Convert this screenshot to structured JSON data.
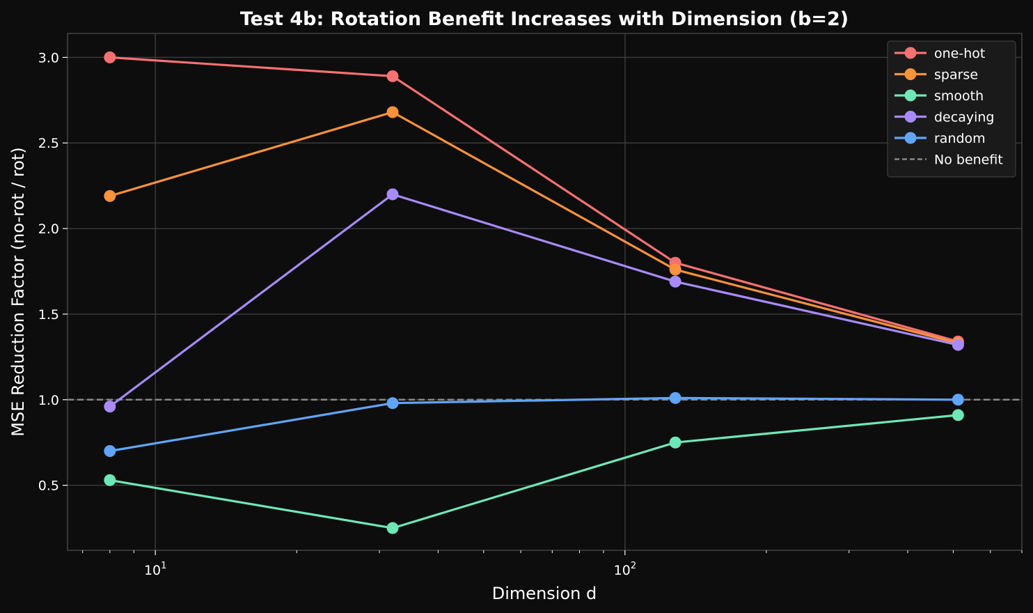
{
  "chart_data": {
    "type": "line",
    "title": "Test 4b: Rotation Benefit Increases with Dimension (b=2)",
    "xlabel": "Dimension d",
    "ylabel": "MSE Reduction Factor (no-rot / rot)",
    "xscale": "log",
    "xlim": [
      6.5,
      700
    ],
    "ylim": [
      0.12,
      3.14
    ],
    "x": [
      8,
      32,
      128,
      512
    ],
    "xticks": [
      {
        "value": 10,
        "base": "10",
        "exp": "1"
      },
      {
        "value": 100,
        "base": "10",
        "exp": "2"
      }
    ],
    "yticks": [
      {
        "value": 0.5,
        "label": "0.5"
      },
      {
        "value": 1.0,
        "label": "1.0"
      },
      {
        "value": 1.5,
        "label": "1.5"
      },
      {
        "value": 2.0,
        "label": "2.0"
      },
      {
        "value": 2.5,
        "label": "2.5"
      },
      {
        "value": 3.0,
        "label": "3.0"
      }
    ],
    "grid": true,
    "legend_position": "top-right",
    "series": [
      {
        "name": "one-hot",
        "color": "#f87171",
        "values": [
          3.0,
          2.89,
          1.8,
          1.34
        ]
      },
      {
        "name": "sparse",
        "color": "#fb923c",
        "values": [
          2.19,
          2.68,
          1.76,
          1.33
        ]
      },
      {
        "name": "smooth",
        "color": "#6ee7b7",
        "values": [
          0.53,
          0.25,
          0.75,
          0.91
        ]
      },
      {
        "name": "decaying",
        "color": "#a78bfa",
        "values": [
          0.96,
          2.2,
          1.69,
          1.32
        ]
      },
      {
        "name": "random",
        "color": "#60a5fa",
        "values": [
          0.7,
          0.98,
          1.01,
          1.0
        ]
      }
    ],
    "reference_line": {
      "name": "No benefit",
      "y": 1.0,
      "color": "#888888",
      "style": "dashed"
    }
  }
}
